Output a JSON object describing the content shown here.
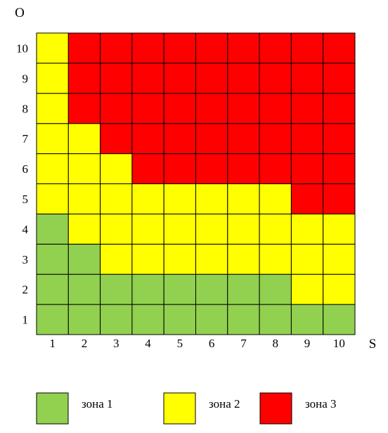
{
  "chart_data": {
    "type": "heatmap",
    "xlabel": "S",
    "ylabel": "O",
    "x": [
      "1",
      "2",
      "3",
      "4",
      "5",
      "6",
      "7",
      "8",
      "9",
      "10"
    ],
    "y": [
      "1",
      "2",
      "3",
      "4",
      "5",
      "6",
      "7",
      "8",
      "9",
      "10"
    ],
    "zones": [
      {
        "id": 1,
        "name": "зона 1",
        "color": "#92d050"
      },
      {
        "id": 2,
        "name": "зона 2",
        "color": "#ffff00"
      },
      {
        "id": 3,
        "name": "зона 3",
        "color": "#ff0000"
      }
    ],
    "cells_by_O": {
      "10": [
        2,
        3,
        3,
        3,
        3,
        3,
        3,
        3,
        3,
        3
      ],
      "9": [
        2,
        3,
        3,
        3,
        3,
        3,
        3,
        3,
        3,
        3
      ],
      "8": [
        2,
        3,
        3,
        3,
        3,
        3,
        3,
        3,
        3,
        3
      ],
      "7": [
        2,
        2,
        3,
        3,
        3,
        3,
        3,
        3,
        3,
        3
      ],
      "6": [
        2,
        2,
        2,
        3,
        3,
        3,
        3,
        3,
        3,
        3
      ],
      "5": [
        2,
        2,
        2,
        2,
        2,
        2,
        2,
        2,
        3,
        3
      ],
      "4": [
        1,
        2,
        2,
        2,
        2,
        2,
        2,
        2,
        2,
        2
      ],
      "3": [
        1,
        1,
        2,
        2,
        2,
        2,
        2,
        2,
        2,
        2
      ],
      "2": [
        1,
        1,
        1,
        1,
        1,
        1,
        1,
        1,
        2,
        2
      ],
      "1": [
        1,
        1,
        1,
        1,
        1,
        1,
        1,
        1,
        1,
        1
      ]
    },
    "grid": true,
    "legend": "bottom"
  }
}
